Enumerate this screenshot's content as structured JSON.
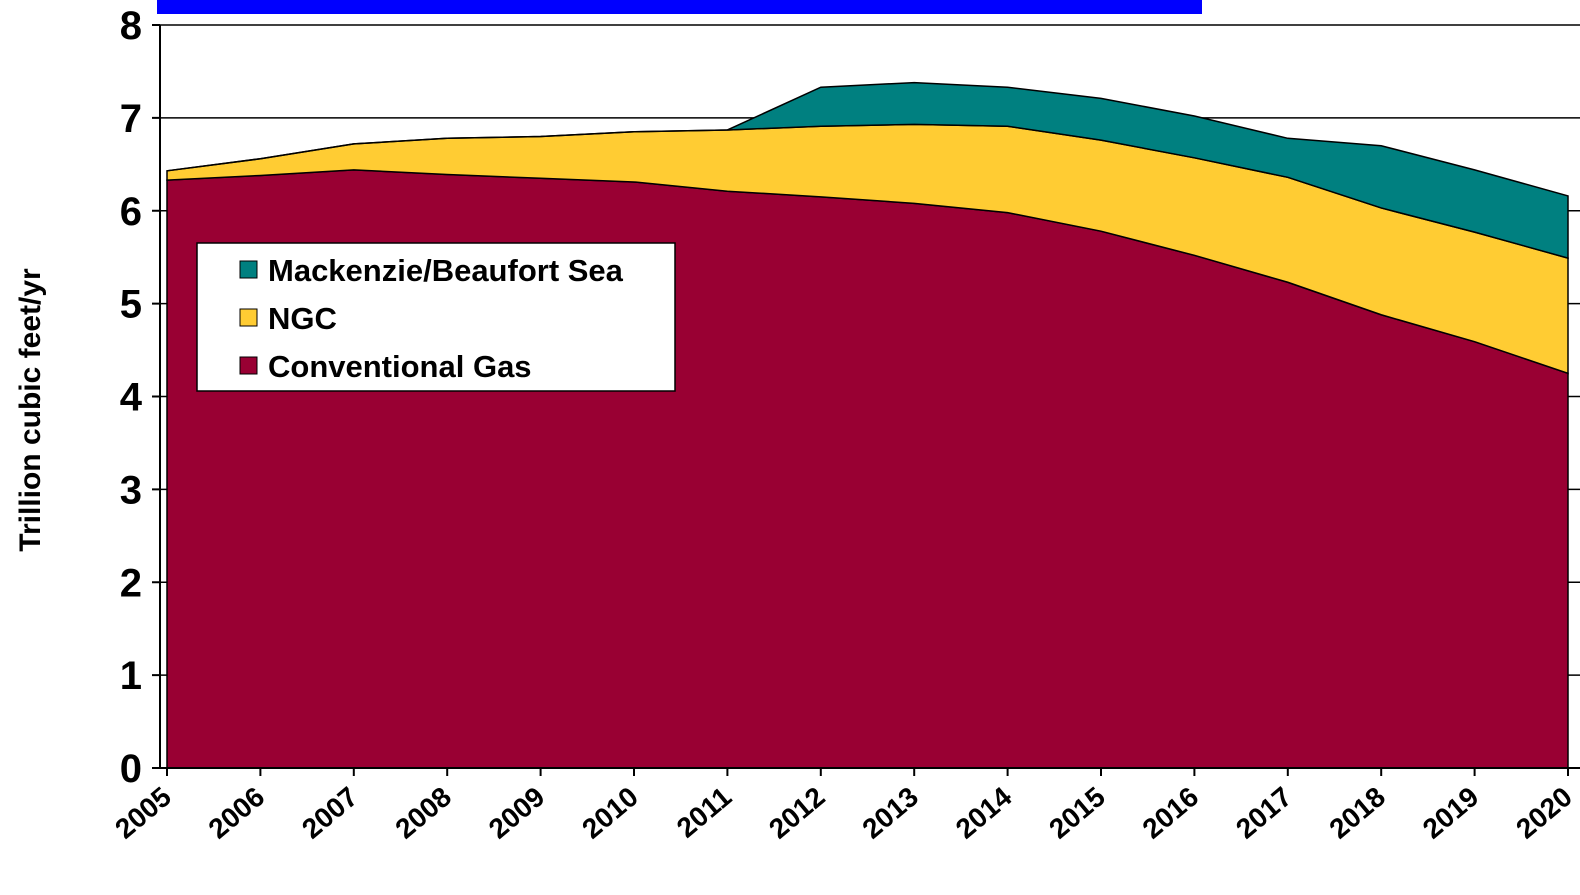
{
  "chart_data": {
    "type": "stacked_area",
    "y_label": "Trillion cubic feet/yr",
    "categories": [
      "2005",
      "2006",
      "2007",
      "2008",
      "2009",
      "2010",
      "2011",
      "2012",
      "2013",
      "2014",
      "2015",
      "2016",
      "2017",
      "2018",
      "2019",
      "2020"
    ],
    "series": [
      {
        "name": "Conventional Gas",
        "color": "#990033",
        "values": [
          6.33,
          6.38,
          6.44,
          6.39,
          6.35,
          6.31,
          6.21,
          6.15,
          6.08,
          5.98,
          5.78,
          5.52,
          5.23,
          4.88,
          4.59,
          4.25
        ]
      },
      {
        "name": "NGC",
        "color": "#ffcc33",
        "values": [
          0.1,
          0.18,
          0.28,
          0.39,
          0.45,
          0.54,
          0.66,
          0.76,
          0.85,
          0.93,
          0.98,
          1.05,
          1.13,
          1.15,
          1.18,
          1.24
        ]
      },
      {
        "name": "Mackenzie/Beaufort Sea",
        "color": "#008080",
        "values": [
          0,
          0,
          0,
          0,
          0,
          0,
          0,
          0.42,
          0.45,
          0.42,
          0.45,
          0.45,
          0.42,
          0.67,
          0.67,
          0.67
        ]
      }
    ],
    "ylim": [
      0,
      8
    ],
    "yticks": [
      0,
      1,
      2,
      3,
      4,
      5,
      6,
      7,
      8
    ],
    "grid": true
  }
}
